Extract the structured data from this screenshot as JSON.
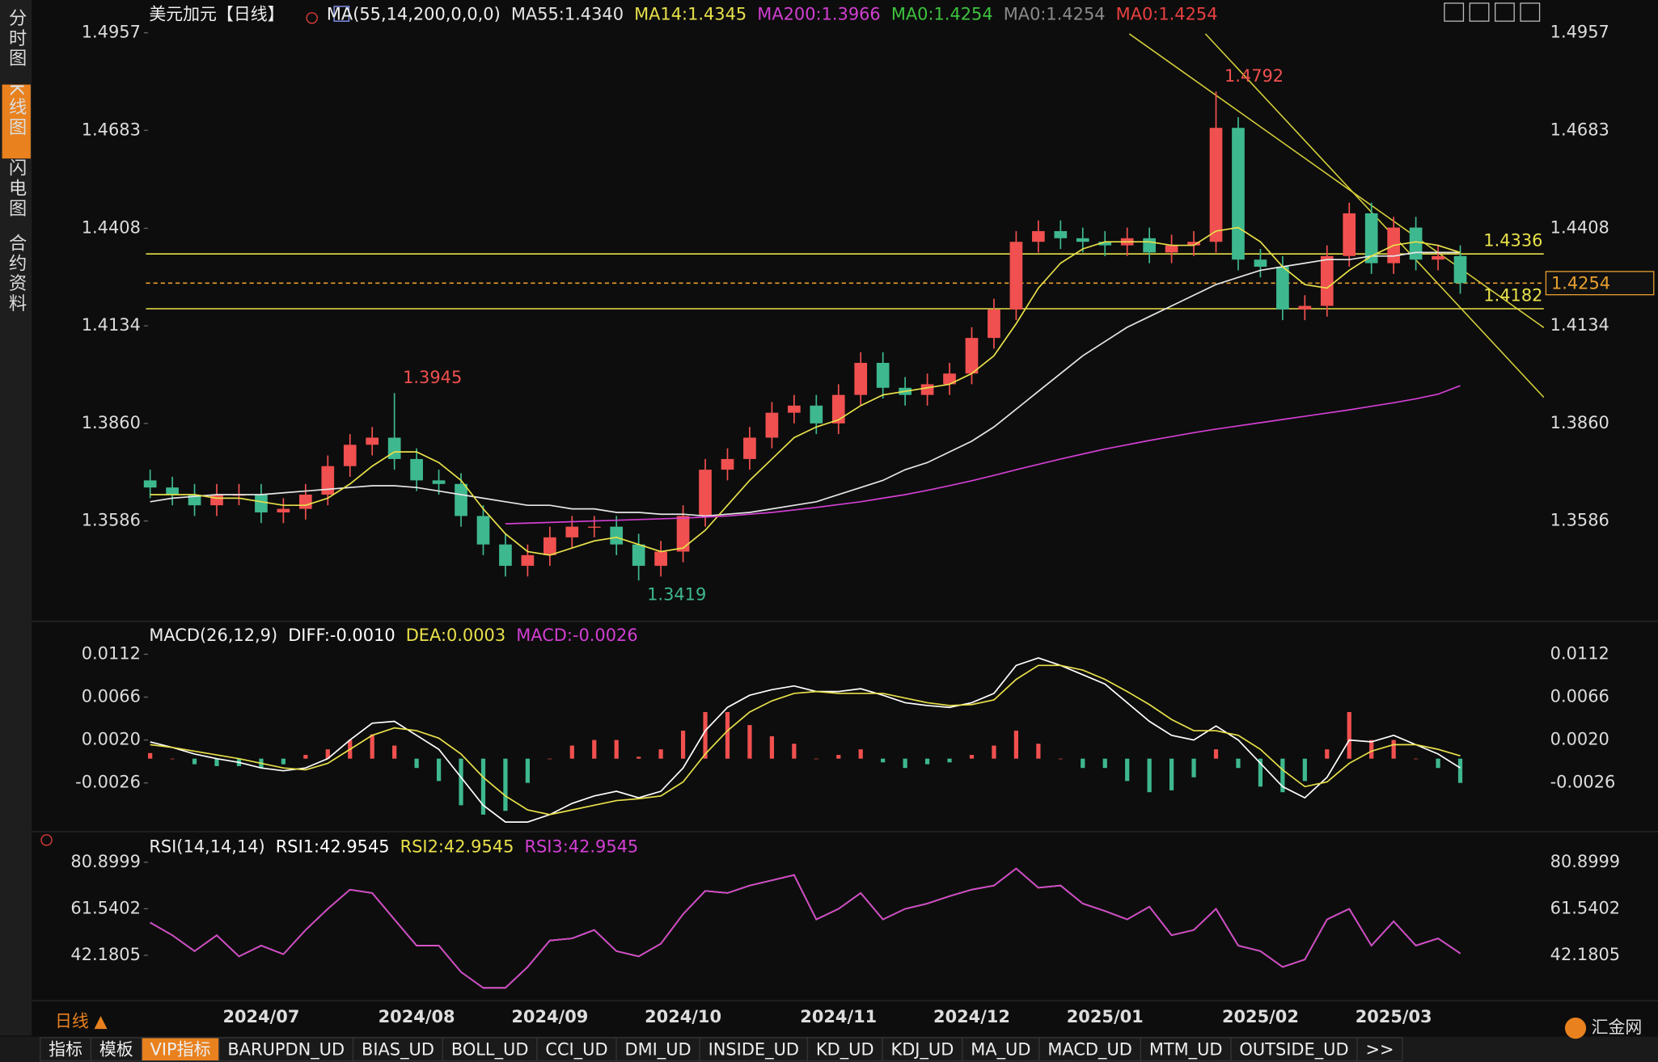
{
  "sidebar": [
    "分时图",
    "K线图",
    "闪电图",
    "合约资料"
  ],
  "toolbar": [
    "指标",
    "模板",
    "VIP指标",
    "BARUPDN_UD",
    "BIAS_UD",
    "BOLL_UD",
    "CCI_UD",
    "DMI_UD",
    "INSIDE_UD",
    "KD_UD",
    "KDJ_UD",
    "MA_UD",
    "MACD_UD",
    "MTM_UD",
    "OUTSIDE_UD",
    ">>"
  ],
  "period": "日线 ▲",
  "logo": "汇金网",
  "chart_data": [
    {
      "type": "candlestick",
      "title": "美元加元【日线】",
      "indicator": "MA(55,14,200,0,0,0)",
      "categories": [
        null,
        null,
        null,
        null,
        null,
        "2024/07",
        null,
        null,
        null,
        null,
        null,
        null,
        "2024/08",
        null,
        null,
        null,
        null,
        null,
        "2024/09",
        null,
        null,
        null,
        null,
        null,
        "2024/10",
        null,
        null,
        null,
        null,
        null,
        null,
        "2024/11",
        null,
        null,
        null,
        null,
        null,
        "2024/12",
        null,
        null,
        null,
        null,
        null,
        "2025/01",
        null,
        null,
        null,
        null,
        null,
        null,
        "2025/02",
        null,
        null,
        null,
        null,
        null,
        "2025/03",
        null,
        null,
        null
      ],
      "open": [
        1.37,
        1.368,
        1.366,
        1.363,
        1.366,
        1.366,
        1.361,
        1.362,
        1.366,
        1.374,
        1.38,
        1.382,
        1.376,
        1.37,
        1.369,
        1.36,
        1.352,
        1.346,
        1.349,
        1.354,
        1.357,
        1.357,
        1.352,
        1.346,
        1.35,
        1.36,
        1.373,
        1.376,
        1.382,
        1.389,
        1.391,
        1.386,
        1.394,
        1.403,
        1.396,
        1.394,
        1.397,
        1.4,
        1.41,
        1.418,
        1.437,
        1.44,
        1.438,
        1.437,
        1.436,
        1.438,
        1.434,
        1.436,
        1.437,
        1.469,
        1.432,
        1.43,
        1.418,
        1.419,
        1.433,
        1.445,
        1.431,
        1.441,
        1.432,
        1.433
      ],
      "high": [
        1.373,
        1.371,
        1.369,
        1.369,
        1.369,
        1.369,
        1.365,
        1.369,
        1.377,
        1.383,
        1.385,
        1.3945,
        1.379,
        1.373,
        1.372,
        1.363,
        1.355,
        1.352,
        1.357,
        1.36,
        1.36,
        1.36,
        1.355,
        1.353,
        1.363,
        1.376,
        1.379,
        1.385,
        1.392,
        1.394,
        1.394,
        1.397,
        1.406,
        1.406,
        1.399,
        1.4,
        1.403,
        1.413,
        1.421,
        1.44,
        1.443,
        1.443,
        1.441,
        1.44,
        1.441,
        1.441,
        1.439,
        1.44,
        1.4792,
        1.472,
        1.435,
        1.433,
        1.422,
        1.436,
        1.448,
        1.448,
        1.444,
        1.444,
        1.436,
        1.436
      ],
      "low": [
        1.365,
        1.363,
        1.36,
        1.36,
        1.363,
        1.358,
        1.358,
        1.359,
        1.363,
        1.371,
        1.377,
        1.373,
        1.367,
        1.366,
        1.357,
        1.349,
        1.343,
        1.343,
        1.346,
        1.351,
        1.354,
        1.349,
        1.3419,
        1.343,
        1.347,
        1.357,
        1.37,
        1.373,
        1.379,
        1.386,
        1.383,
        1.383,
        1.391,
        1.393,
        1.391,
        1.391,
        1.394,
        1.397,
        1.407,
        1.415,
        1.434,
        1.435,
        1.434,
        1.433,
        1.433,
        1.431,
        1.431,
        1.433,
        1.434,
        1.429,
        1.427,
        1.415,
        1.415,
        1.416,
        1.43,
        1.428,
        1.428,
        1.429,
        1.429,
        1.4224
      ],
      "close": [
        1.368,
        1.366,
        1.363,
        1.366,
        1.366,
        1.361,
        1.362,
        1.366,
        1.374,
        1.38,
        1.382,
        1.376,
        1.37,
        1.369,
        1.36,
        1.352,
        1.346,
        1.349,
        1.354,
        1.357,
        1.357,
        1.352,
        1.346,
        1.35,
        1.36,
        1.373,
        1.376,
        1.382,
        1.389,
        1.391,
        1.386,
        1.394,
        1.403,
        1.396,
        1.394,
        1.397,
        1.4,
        1.41,
        1.418,
        1.437,
        1.44,
        1.438,
        1.437,
        1.436,
        1.438,
        1.434,
        1.436,
        1.437,
        1.469,
        1.432,
        1.43,
        1.418,
        1.419,
        1.433,
        1.445,
        1.431,
        1.441,
        1.432,
        1.433,
        1.4254
      ],
      "up_color": "#f0504f",
      "down_color": "#3eb88e",
      "series": [
        {
          "name": "MA55:1.4340",
          "color": "#e6e6e6",
          "values": [
            1.364,
            1.365,
            1.3655,
            1.366,
            1.366,
            1.366,
            1.3665,
            1.367,
            1.3675,
            1.368,
            1.3685,
            1.3685,
            1.368,
            1.367,
            1.366,
            1.365,
            1.364,
            1.363,
            1.363,
            1.362,
            1.362,
            1.361,
            1.361,
            1.3605,
            1.3605,
            1.36,
            1.3605,
            1.361,
            1.362,
            1.363,
            1.364,
            1.366,
            1.368,
            1.37,
            1.373,
            1.375,
            1.378,
            1.381,
            1.385,
            1.39,
            1.395,
            1.4,
            1.405,
            1.409,
            1.413,
            1.416,
            1.419,
            1.422,
            1.425,
            1.427,
            1.429,
            1.43,
            1.431,
            1.432,
            1.432,
            1.433,
            1.433,
            1.434,
            1.434,
            1.434
          ]
        },
        {
          "name": "MA14:1.4345",
          "color": "#e8e04a",
          "values": [
            1.366,
            1.366,
            1.366,
            1.365,
            1.365,
            1.364,
            1.363,
            1.363,
            1.365,
            1.369,
            1.374,
            1.378,
            1.378,
            1.375,
            1.37,
            1.362,
            1.355,
            1.35,
            1.349,
            1.351,
            1.353,
            1.354,
            1.352,
            1.35,
            1.351,
            1.356,
            1.363,
            1.37,
            1.376,
            1.382,
            1.385,
            1.387,
            1.391,
            1.394,
            1.395,
            1.396,
            1.397,
            1.4,
            1.405,
            1.414,
            1.424,
            1.431,
            1.435,
            1.437,
            1.437,
            1.437,
            1.436,
            1.436,
            1.44,
            1.441,
            1.437,
            1.43,
            1.425,
            1.424,
            1.429,
            1.433,
            1.436,
            1.437,
            1.436,
            1.434
          ]
        },
        {
          "name": "MA200:1.3966",
          "color": "#d23fd2",
          "values": [
            null,
            null,
            null,
            null,
            null,
            null,
            null,
            null,
            null,
            null,
            null,
            null,
            null,
            null,
            null,
            null,
            1.3578,
            1.358,
            1.3582,
            1.3584,
            1.3586,
            1.3588,
            1.359,
            1.3592,
            1.3594,
            1.3597,
            1.36,
            1.3605,
            1.361,
            1.3617,
            1.3624,
            1.3632,
            1.364,
            1.365,
            1.366,
            1.3672,
            1.3685,
            1.3699,
            1.3714,
            1.373,
            1.3745,
            1.376,
            1.3774,
            1.3788,
            1.38,
            1.3812,
            1.3823,
            1.3834,
            1.3844,
            1.3853,
            1.3862,
            1.3871,
            1.388,
            1.3889,
            1.3898,
            1.3908,
            1.3918,
            1.3929,
            1.3942,
            1.3966
          ]
        }
      ],
      "legend_extra": [
        {
          "text": "MA0:1.4254",
          "color": "#3ec23e"
        },
        {
          "text": "MA0:1.4254",
          "color": "#8a8a8a"
        },
        {
          "text": "MA0:1.4254",
          "color": "#e84040"
        }
      ],
      "ylim": [
        1.3313,
        1.4957
      ],
      "yticks": [
        1.4957,
        1.4683,
        1.4408,
        1.4134,
        {
          "value": 1.386,
          "label": "1.3860"
        },
        1.3586
      ],
      "levels": [
        {
          "value": 1.4336,
          "label": "1.4336",
          "color": "#e8e04a",
          "style": "solid"
        },
        {
          "value": 1.4182,
          "label": "1.4182",
          "color": "#e8e04a",
          "style": "solid"
        },
        {
          "value": 1.4254,
          "label": "1.4254",
          "color": "#e8a030",
          "style": "dashed"
        }
      ],
      "annotations": [
        {
          "value": 1.4792,
          "label": "1.4792"
        },
        {
          "value": 1.3945,
          "label": "1.3945"
        },
        {
          "value": 1.3419,
          "label": "1.3419"
        }
      ]
    },
    {
      "type": "macd",
      "title": "MACD(26,12,9)",
      "series": [
        {
          "name": "DIFF:-0.0010",
          "color": "#ffffff",
          "values": [
            0.0018,
            0.0012,
            0.0005,
            0.0,
            -0.0004,
            -0.001,
            -0.0013,
            -0.001,
            0.0,
            0.002,
            0.0038,
            0.004,
            0.0025,
            0.001,
            -0.002,
            -0.005,
            -0.0068,
            -0.0068,
            -0.006,
            -0.0048,
            -0.004,
            -0.0035,
            -0.0042,
            -0.0035,
            -0.001,
            0.003,
            0.0055,
            0.0068,
            0.0074,
            0.0078,
            0.0072,
            0.0072,
            0.0075,
            0.0068,
            0.006,
            0.0057,
            0.0055,
            0.006,
            0.007,
            0.01,
            0.0108,
            0.01,
            0.009,
            0.008,
            0.006,
            0.004,
            0.0025,
            0.002,
            0.0035,
            0.002,
            -0.0005,
            -0.003,
            -0.0042,
            -0.002,
            0.002,
            0.0018,
            0.0025,
            0.0015,
            0.0005,
            -0.001
          ]
        },
        {
          "name": "DEA:0.0003",
          "color": "#e8e04a",
          "values": [
            0.0015,
            0.0012,
            0.0008,
            0.0004,
            0.0,
            -0.0005,
            -0.001,
            -0.0012,
            -0.0005,
            0.001,
            0.0025,
            0.0033,
            0.003,
            0.0022,
            0.0005,
            -0.002,
            -0.004,
            -0.0055,
            -0.006,
            -0.0055,
            -0.005,
            -0.0045,
            -0.0043,
            -0.004,
            -0.0025,
            0.0005,
            0.003,
            0.005,
            0.0062,
            0.007,
            0.0072,
            0.007,
            0.007,
            0.007,
            0.0065,
            0.006,
            0.0057,
            0.0058,
            0.0063,
            0.0085,
            0.01,
            0.01,
            0.0095,
            0.0085,
            0.0072,
            0.0058,
            0.0042,
            0.003,
            0.003,
            0.0025,
            0.001,
            -0.0012,
            -0.003,
            -0.0025,
            -0.0005,
            0.0008,
            0.0015,
            0.0015,
            0.001,
            0.0003
          ]
        },
        {
          "name": "MACD:-0.0026",
          "color": "#d23fd2",
          "kind": "histogram",
          "values": [
            0.0006,
            0,
            -0.0006,
            -0.0008,
            -0.0008,
            -0.001,
            -0.0006,
            0.0004,
            0.001,
            0.002,
            0.0026,
            0.0014,
            -0.001,
            -0.0024,
            -0.005,
            -0.006,
            -0.0056,
            -0.0026,
            0,
            0.0014,
            0.002,
            0.002,
            0.0002,
            0.001,
            0.003,
            0.005,
            0.005,
            0.0036,
            0.0024,
            0.0016,
            0,
            0.0004,
            0.001,
            -0.0004,
            -0.001,
            -0.0006,
            -0.0004,
            0.0004,
            0.0014,
            0.003,
            0.0016,
            0,
            -0.001,
            -0.001,
            -0.0024,
            -0.0036,
            -0.0034,
            -0.002,
            0.001,
            -0.001,
            -0.003,
            -0.0036,
            -0.0024,
            0.001,
            0.005,
            0.002,
            0.002,
            0,
            -0.001,
            -0.0026
          ]
        }
      ],
      "up_color": "#f0504f",
      "down_color": "#3eb88e",
      "ylim": [
        -0.0076,
        0.0145
      ],
      "yticks": [
        0.0112,
        0.0066,
        {
          "value": 0.002,
          "label": "0.0020"
        },
        -0.0026
      ]
    },
    {
      "type": "line",
      "title": "RSI(14,14,14)",
      "series": [
        {
          "name": "RSI1:42.9545",
          "color": "#ffffff",
          "values": [
            55.8,
            50.5,
            43.9,
            50.5,
            41.7,
            46.2,
            42.6,
            52.7,
            61.5,
            69.5,
            68.1,
            57.1,
            46.2,
            46.2,
            35.2,
            28.6,
            28.6,
            37.3,
            48.3,
            49.2,
            52.7,
            43.9,
            41.7,
            47,
            59.3,
            69,
            68.1,
            71.2,
            73.4,
            75.6,
            57.1,
            61.5,
            68.1,
            57.1,
            61.5,
            63.7,
            66.8,
            69.5,
            71.2,
            78.3,
            70.3,
            71.2,
            63.7,
            60.6,
            57.1,
            62.4,
            50.5,
            52.7,
            61.5,
            46.2,
            43.9,
            37.3,
            40.4,
            57.1,
            61.5,
            46.2,
            56.3,
            46.2,
            49.2,
            42.9545
          ]
        },
        {
          "name": "RSI2:42.9545",
          "color": "#e8e04a",
          "values": [
            55.8,
            50.5,
            43.9,
            50.5,
            41.7,
            46.2,
            42.6,
            52.7,
            61.5,
            69.5,
            68.1,
            57.1,
            46.2,
            46.2,
            35.2,
            28.6,
            28.6,
            37.3,
            48.3,
            49.2,
            52.7,
            43.9,
            41.7,
            47,
            59.3,
            69,
            68.1,
            71.2,
            73.4,
            75.6,
            57.1,
            61.5,
            68.1,
            57.1,
            61.5,
            63.7,
            66.8,
            69.5,
            71.2,
            78.3,
            70.3,
            71.2,
            63.7,
            60.6,
            57.1,
            62.4,
            50.5,
            52.7,
            61.5,
            46.2,
            43.9,
            37.3,
            40.4,
            57.1,
            61.5,
            46.2,
            56.3,
            46.2,
            49.2,
            42.9545
          ]
        },
        {
          "name": "RSI3:42.9545",
          "color": "#d23fd2",
          "values": [
            55.8,
            50.5,
            43.9,
            50.5,
            41.7,
            46.2,
            42.6,
            52.7,
            61.5,
            69.5,
            68.1,
            57.1,
            46.2,
            46.2,
            35.2,
            28.6,
            28.6,
            37.3,
            48.3,
            49.2,
            52.7,
            43.9,
            41.7,
            47,
            59.3,
            69,
            68.1,
            71.2,
            73.4,
            75.6,
            57.1,
            61.5,
            68.1,
            57.1,
            61.5,
            63.7,
            66.8,
            69.5,
            71.2,
            78.3,
            70.3,
            71.2,
            63.7,
            60.6,
            57.1,
            62.4,
            50.5,
            52.7,
            61.5,
            46.2,
            43.9,
            37.3,
            40.4,
            57.1,
            61.5,
            46.2,
            56.3,
            46.2,
            49.2,
            42.9545
          ]
        }
      ],
      "ylim": [
        24.14,
        92.34
      ],
      "yticks": [
        80.8999,
        61.5402,
        42.1805
      ]
    }
  ]
}
